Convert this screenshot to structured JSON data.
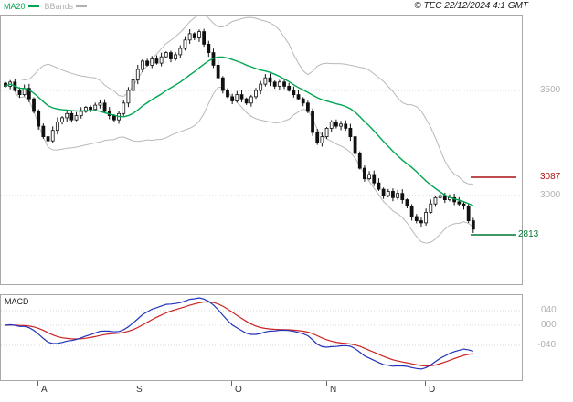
{
  "header": {
    "legend": [
      {
        "label": "MA20",
        "color": "#00a651"
      },
      {
        "label": "BBands",
        "color": "#b0b0b0"
      }
    ],
    "copyright": "© TEC 22/12/2024 4:1 GMT"
  },
  "price_axis": {
    "gridline_labels": [
      {
        "text": "3500",
        "value": 3500,
        "color": "#b0b0b0"
      },
      {
        "text": "3000",
        "value": 3000,
        "color": "#b0b0b0"
      }
    ]
  },
  "levels": {
    "resistance": {
      "text": "3087",
      "value": 3087,
      "color": "#aa1111"
    },
    "support": {
      "text": "2813",
      "value": 2813,
      "color": "#007733"
    }
  },
  "macd": {
    "label": "MACD",
    "line_color": "#2233bb",
    "signal_color": "#cc2222",
    "axis_labels": [
      {
        "text": "040",
        "value": 0.4,
        "color": "#b0b0b0"
      },
      {
        "text": "000",
        "value": 0.0,
        "color": "#b0b0b0"
      },
      {
        "text": "-040",
        "value": -0.4,
        "color": "#b0b0b0"
      }
    ]
  },
  "x_axis": {
    "ticks": [
      {
        "label": "A",
        "index": 7
      },
      {
        "label": "S",
        "index": 27
      },
      {
        "label": "O",
        "index": 48
      },
      {
        "label": "N",
        "index": 68
      },
      {
        "label": "D",
        "index": 89
      }
    ]
  },
  "chart_data": {
    "type": "candlestick",
    "title": "Daily price with MA20 and Bollinger Bands, MACD sub-panel",
    "y_axis": {
      "ticks": [
        3500,
        3000
      ],
      "approx_range": [
        2570,
        3860
      ]
    },
    "x_tick_labels": [
      "A",
      "S",
      "O",
      "N",
      "D"
    ],
    "x_tick_indices": [
      7,
      27,
      48,
      68,
      89
    ],
    "closes": [
      3520,
      3540,
      3500,
      3480,
      3510,
      3460,
      3400,
      3330,
      3280,
      3260,
      3310,
      3350,
      3370,
      3390,
      3360,
      3380,
      3400,
      3420,
      3410,
      3430,
      3440,
      3400,
      3380,
      3360,
      3390,
      3440,
      3500,
      3550,
      3600,
      3640,
      3620,
      3650,
      3630,
      3660,
      3680,
      3650,
      3670,
      3700,
      3740,
      3770,
      3750,
      3780,
      3720,
      3680,
      3620,
      3560,
      3500,
      3470,
      3450,
      3480,
      3460,
      3440,
      3470,
      3500,
      3530,
      3560,
      3540,
      3520,
      3540,
      3520,
      3500,
      3480,
      3460,
      3440,
      3400,
      3300,
      3250,
      3280,
      3320,
      3350,
      3330,
      3340,
      3320,
      3280,
      3200,
      3130,
      3080,
      3100,
      3060,
      3030,
      3000,
      3020,
      2990,
      3010,
      2980,
      2950,
      2900,
      2880,
      2870,
      2920,
      2960,
      2990,
      3000,
      2980,
      2990,
      2970,
      2960,
      2950,
      2880,
      2840
    ],
    "derivation": {
      "open_equals_previous_close": true,
      "wick_units_base": 6
    },
    "candle_color": "#111111",
    "indicators": {
      "ma20": {
        "period": 20,
        "color": "#00a651"
      },
      "bbands": {
        "period": 20,
        "stddev": 2,
        "color": "#b8b8b8"
      },
      "macd": {
        "fast": 12,
        "slow": 26,
        "signal": 9
      }
    },
    "levels": [
      {
        "value": 3087,
        "color": "#aa1111"
      },
      {
        "value": 2813,
        "color": "#007733"
      }
    ]
  }
}
